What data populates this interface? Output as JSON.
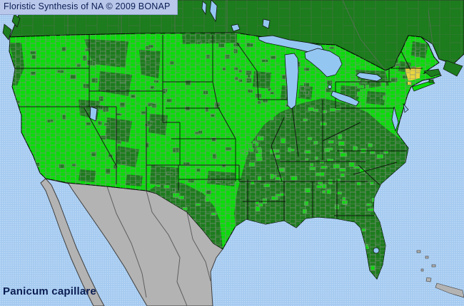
{
  "header": {
    "title": "Floristic Synthesis of NA © 2009 BONAP"
  },
  "footer": {
    "species_label": "Panicum capillare"
  },
  "colors": {
    "ocean": "#a6cbf0",
    "ocean_dot": "#c3ddf8",
    "lake": "#94c6f2",
    "canada_land": "#1d7c1d",
    "county_present": "#0bdb0b",
    "county_dark": "#1d7c1d",
    "county_rare": "#e9d53e",
    "mexico_land": "#b3b3b3",
    "mexico_border": "#5f5f5f",
    "county_border": "#7e8e7e",
    "province_border": "#5c6e5c",
    "state_border": "#0d0d0d",
    "coast_line": "#111111",
    "title_bar_bg": "#b9c7ea",
    "text": "#0a1d52"
  }
}
